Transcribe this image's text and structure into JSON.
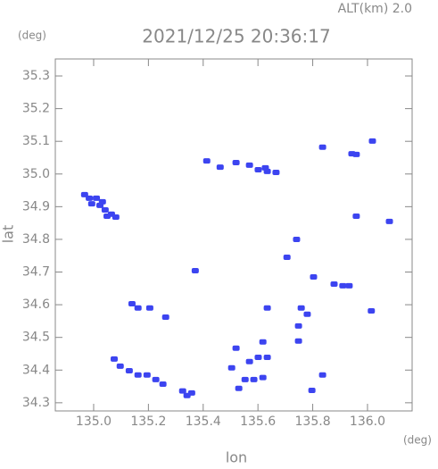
{
  "chart_data": {
    "type": "scatter",
    "title": "2021/12/25 20:36:17",
    "subtitle": "ALT(km)  2.0",
    "x_unit": "(deg)",
    "y_unit": "(deg)",
    "x_label": "lon",
    "y_label": "lat",
    "xlim": [
      134.86,
      136.163
    ],
    "ylim": [
      34.275,
      35.352
    ],
    "xticks": [
      {
        "value": 135,
        "label": "135.0"
      },
      135.2,
      135.4,
      135.6,
      135.8,
      {
        "value": 136,
        "label": "136.0"
      }
    ],
    "yticks": [
      34.3,
      34.4,
      34.5,
      34.6,
      34.7,
      34.8,
      34.9,
      {
        "value": 35,
        "label": "35.0"
      },
      35.1,
      35.2,
      35.3
    ],
    "series": [
      {
        "color": "#3c44f0",
        "x": [
          134.967,
          134.984,
          135.01,
          135.023,
          135.042,
          135.065,
          134.993,
          135.032,
          135.049,
          135.081,
          135.413,
          135.462,
          135.52,
          135.569,
          135.601,
          135.634,
          135.666,
          135.627,
          135.836,
          135.943,
          135.959,
          136.018,
          135.959,
          136.08,
          135.741,
          135.706,
          135.803,
          135.878,
          135.91,
          135.933,
          135.371,
          135.14,
          135.162,
          135.205,
          135.263,
          135.634,
          135.758,
          135.78,
          135.748,
          136.014,
          135.618,
          135.52,
          135.504,
          135.075,
          135.097,
          135.13,
          135.162,
          135.195,
          135.227,
          135.253,
          135.325,
          135.341,
          135.358,
          135.569,
          135.601,
          135.634,
          135.585,
          135.553,
          135.618,
          135.53,
          135.836,
          135.797,
          135.748
        ],
        "y": [
          34.937,
          34.926,
          34.926,
          34.904,
          34.89,
          34.877,
          34.909,
          34.915,
          34.871,
          34.868,
          35.04,
          35.021,
          35.035,
          35.027,
          35.013,
          35.008,
          35.005,
          35.019,
          35.082,
          35.062,
          35.06,
          35.101,
          34.871,
          34.855,
          34.8,
          34.745,
          34.685,
          34.663,
          34.658,
          34.658,
          34.704,
          34.603,
          34.59,
          34.59,
          34.562,
          34.59,
          34.59,
          34.571,
          34.535,
          34.581,
          34.486,
          34.467,
          34.407,
          34.434,
          34.412,
          34.398,
          34.385,
          34.385,
          34.371,
          34.357,
          34.336,
          34.322,
          34.33,
          34.426,
          34.439,
          34.439,
          34.371,
          34.371,
          34.377,
          34.344,
          34.385,
          34.338,
          34.489
        ]
      }
    ],
    "grid": false
  }
}
